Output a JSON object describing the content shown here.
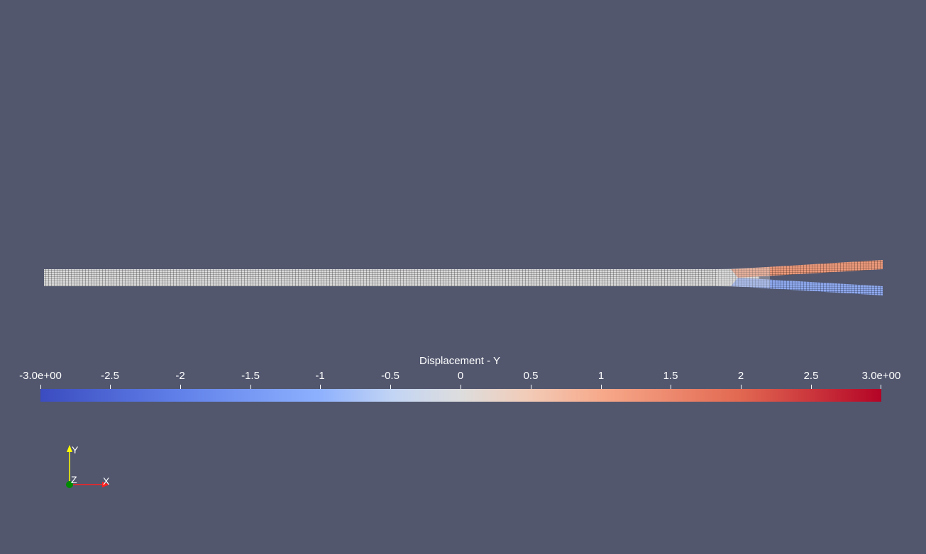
{
  "scene": {
    "background_color": "#52576e",
    "mesh": {
      "stem_color": "#d8d8d8",
      "upper_arm_color": "#e8967a",
      "lower_arm_color": "#8aa8ef",
      "grid_line_color": "#1c1c1c"
    }
  },
  "scalar_bar": {
    "title": "Displacement - Y",
    "ticks": [
      "-3.0e+00",
      "-2.5",
      "-2",
      "-1.5",
      "-1",
      "-0.5",
      "0",
      "0.5",
      "1",
      "1.5",
      "2",
      "2.5",
      "3.0e+00"
    ],
    "colormap": "Cool to Warm",
    "range": [
      -3.0,
      3.0
    ]
  },
  "orientation_axes": {
    "x_label": "X",
    "y_label": "Y",
    "z_label": "Z",
    "x_color": "#ff0000",
    "y_color": "#ffff00",
    "z_color": "#00aa00"
  }
}
